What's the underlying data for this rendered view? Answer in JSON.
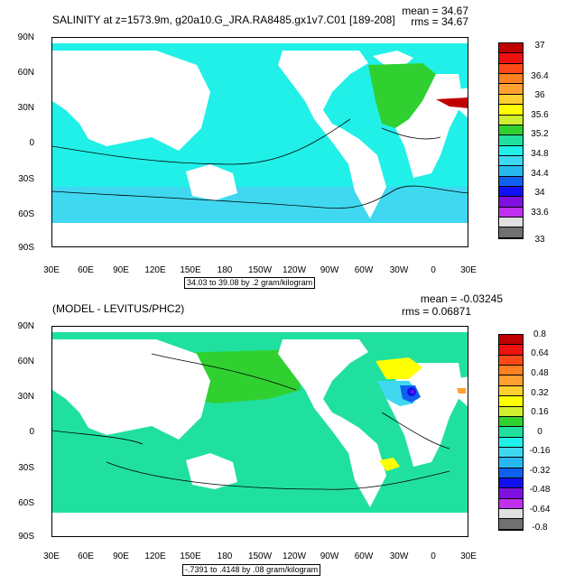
{
  "panel1": {
    "title": "SALINITY at z=1573.9m, g20a10.G_JRA.RA8485.gx1v7.C01 [189-208]",
    "mean": "mean = 34.67",
    "rms": "rms = 34.67",
    "range": "34.03 to 39.08 by .2 gram/kilogram",
    "colorbar_labels": [
      "37",
      "36.4",
      "36",
      "35.6",
      "35.2",
      "34.8",
      "34.4",
      "34",
      "33.6",
      "33"
    ]
  },
  "panel2": {
    "title": "(MODEL - LEVITUS/PHC2)",
    "mean": "mean = -0.03245",
    "rms": "rms = 0.06871",
    "range": "-.7391 to .4148 by .08 gram/kilogram",
    "colorbar_labels": [
      "0.8",
      "0.64",
      "0.48",
      "0.32",
      "0.16",
      "0",
      "-0.16",
      "-0.32",
      "-0.48",
      "-0.64",
      "-0.8"
    ]
  },
  "axes": {
    "lat_labels": [
      "90N",
      "60N",
      "30N",
      "0",
      "30S",
      "60S",
      "90S"
    ],
    "lon_labels": [
      "30E",
      "60E",
      "90E",
      "120E",
      "150E",
      "180",
      "150W",
      "120W",
      "90W",
      "60W",
      "30W",
      "0",
      "30E"
    ]
  },
  "colors": {
    "panel1_scale": [
      "#c00000",
      "#ef1010",
      "#ff4a18",
      "#ff8020",
      "#ffa030",
      "#ffd030",
      "#ffff00",
      "#cfee30",
      "#30d030",
      "#20e0a0",
      "#20f0e8",
      "#40d8f0",
      "#28b8f0",
      "#1060f0",
      "#1010f0",
      "#8010e0",
      "#c030f0",
      "#e0e0e0",
      "#707070"
    ],
    "panel2_scale": [
      "#c00000",
      "#ef1010",
      "#ff4a18",
      "#ff8020",
      "#ffa030",
      "#ffd030",
      "#ffff00",
      "#cfee30",
      "#30d030",
      "#20e0a0",
      "#20f0e8",
      "#40d8f0",
      "#28b8f0",
      "#1060f0",
      "#1010f0",
      "#8010e0",
      "#c030f0",
      "#e0e0e0",
      "#707070"
    ]
  }
}
